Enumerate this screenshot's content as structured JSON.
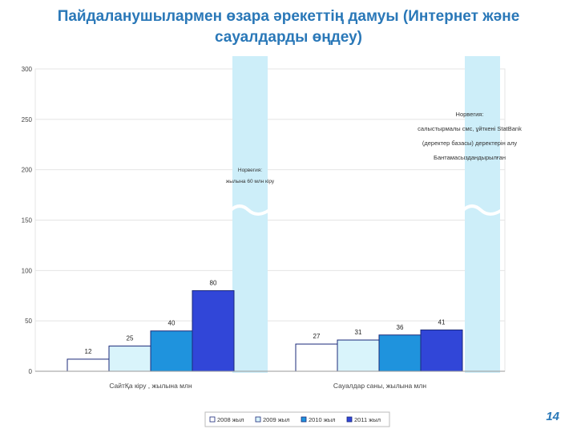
{
  "title": "Пайдаланушылармен өзара әрекеттің дамуы (Интернет және сауалдарды өңдеу)",
  "page_number": "14",
  "colors": {
    "title": "#2a78b8",
    "break_band": "#cdeef9",
    "series": [
      "#ffffff",
      "#d9f4fb",
      "#1f93dd",
      "#3146d8"
    ]
  },
  "chart_data": {
    "type": "bar",
    "ylim": [
      0,
      300
    ],
    "yticks": [
      0,
      50,
      100,
      150,
      200,
      250,
      300
    ],
    "categories": [
      "СайтҚа кіру , жылына млн",
      "Сауалдар саны, жылына млн"
    ],
    "series": [
      {
        "name": "2008 жыл",
        "values": [
          12,
          27
        ]
      },
      {
        "name": "2009 жыл",
        "values": [
          25,
          31
        ]
      },
      {
        "name": "2010 жыл",
        "values": [
          40,
          36
        ]
      },
      {
        "name": "2011 жыл",
        "values": [
          80,
          41
        ]
      }
    ],
    "annotations": [
      {
        "lines": [
          "Норвегия:",
          "жылына 60 млн кіру"
        ]
      },
      {
        "lines": [
          "Норвегия:",
          "салыстырмалы смс, ұйткені  StatBank",
          "(деректер базасы) деректерін алу",
          "Бантамасыздандырылған"
        ]
      }
    ],
    "legend_position": "bottom"
  }
}
